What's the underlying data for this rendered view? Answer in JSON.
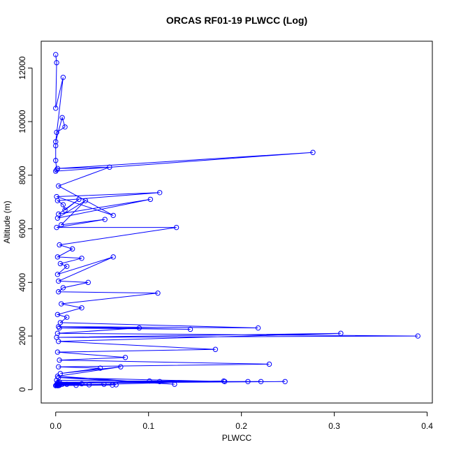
{
  "chart_data": {
    "type": "line",
    "title": "ORCAS RF01-19 PLWCC (Log)",
    "xlabel": "PLWCC",
    "ylabel": "Altitude (m)",
    "xlim": [
      0,
      0.4
    ],
    "ylim": [
      0,
      12500
    ],
    "xticks": [
      0.0,
      0.1,
      0.2,
      0.3,
      0.4
    ],
    "xtick_labels": [
      "0.0",
      "0.1",
      "0.2",
      "0.3",
      "0.4"
    ],
    "yticks": [
      0,
      2000,
      4000,
      6000,
      8000,
      10000,
      12000
    ],
    "ytick_labels": [
      "0",
      "2000",
      "4000",
      "6000",
      "8000",
      "10000",
      "12000"
    ],
    "grid": false,
    "series": [
      {
        "color": "#0000ff",
        "marker": "open-circle",
        "x": [
          0.0,
          0.001,
          0.0,
          0.008,
          0.0,
          0.007,
          0.01,
          0.001,
          0.0,
          0.0,
          0.001,
          0.0,
          0.277,
          0.002,
          0.058,
          0.003,
          0.062,
          0.001,
          0.112,
          0.002,
          0.008,
          0.01,
          0.025,
          0.003,
          0.102,
          0.002,
          0.032,
          0.006,
          0.053,
          0.001,
          0.13,
          0.004,
          0.018,
          0.002,
          0.028,
          0.005,
          0.012,
          0.002,
          0.062,
          0.003,
          0.035,
          0.008,
          0.003,
          0.11,
          0.006,
          0.028,
          0.002,
          0.012,
          0.005,
          0.218,
          0.003,
          0.145,
          0.004,
          0.09,
          0.002,
          0.39,
          0.001,
          0.307,
          0.003,
          0.172,
          0.002,
          0.075,
          0.004,
          0.23,
          0.003,
          0.048,
          0.005,
          0.07,
          0.002,
          0.128,
          0.003,
          0.182,
          0.001,
          0.207,
          0.004,
          0.221,
          0.002,
          0.247,
          0.003,
          0.112,
          0.005,
          0.101,
          0.002,
          0.065,
          0.001,
          0.036,
          0.002,
          0.052,
          0.004,
          0.028,
          0.001,
          0.022,
          0.002,
          0.061,
          0.003,
          0.181,
          0.002,
          0.012,
          0.001,
          0.004,
          0.002,
          0.007,
          0.001,
          0.0,
          0.001,
          0.003,
          0.0
        ],
        "y": [
          12500,
          12200,
          10500,
          11650,
          9250,
          10150,
          9800,
          9600,
          9100,
          8550,
          8200,
          8150,
          8850,
          8250,
          8300,
          7600,
          6500,
          7200,
          7350,
          7050,
          6900,
          6700,
          7100,
          6550,
          7100,
          6400,
          7050,
          6150,
          6350,
          6050,
          6050,
          5400,
          5250,
          4950,
          4900,
          4700,
          4600,
          4300,
          4950,
          4050,
          4000,
          3800,
          3650,
          3600,
          3200,
          3050,
          2800,
          2700,
          2500,
          2300,
          2350,
          2250,
          2300,
          2300,
          2100,
          2000,
          1950,
          2100,
          1800,
          1500,
          1400,
          1200,
          1100,
          950,
          850,
          800,
          600,
          850,
          500,
          200,
          450,
          300,
          350,
          300,
          280,
          300,
          250,
          300,
          240,
          300,
          220,
          320,
          200,
          180,
          160,
          180,
          150,
          200,
          170,
          220,
          180,
          160,
          190,
          170,
          150,
          320,
          250,
          200,
          180,
          160,
          150,
          200,
          170,
          150,
          180,
          160,
          150
        ]
      }
    ]
  }
}
